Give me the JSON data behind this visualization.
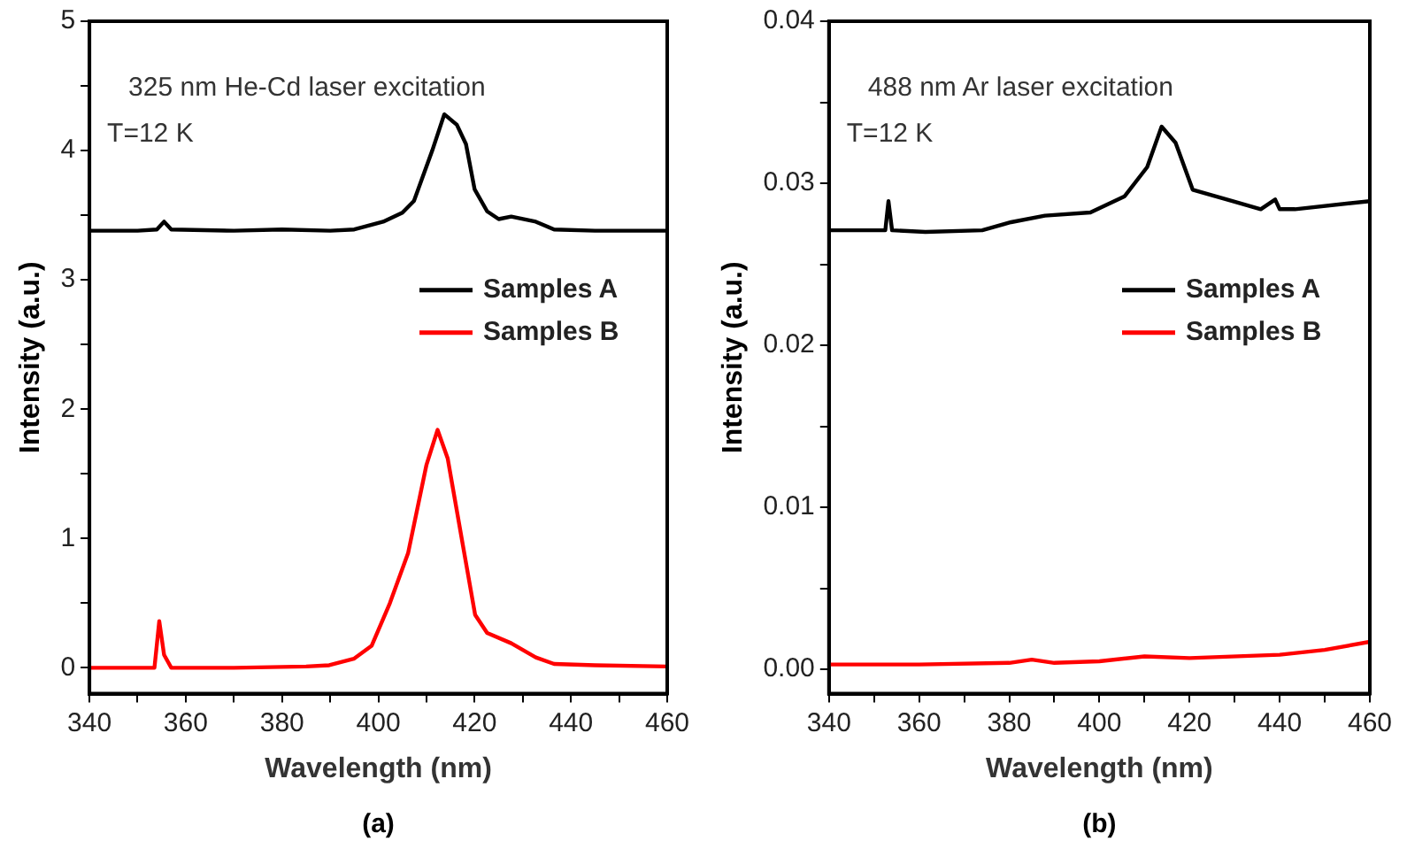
{
  "chart_data": [
    {
      "type": "line",
      "xlabel": "Wavelength (nm)",
      "ylabel": "Intensity (a.u.)",
      "annotations": [
        "325 nm He-Cd laser excitation",
        "T=12 K",
        "(a)"
      ],
      "legend": "right",
      "grid": false,
      "line_style": "solid",
      "marker": "none",
      "xlim": [
        340,
        460
      ],
      "xticks": [
        340,
        {
          "value": 350,
          "label": null
        },
        360,
        {
          "value": 370,
          "label": null
        },
        380,
        {
          "value": 390,
          "label": null
        },
        400,
        {
          "value": 410,
          "label": null
        },
        420,
        {
          "value": 430,
          "label": null
        },
        440,
        {
          "value": 450,
          "label": null
        },
        460
      ],
      "ylim": [
        -0.2,
        5
      ],
      "yticks": [
        0,
        {
          "value": 0.5,
          "label": null
        },
        1,
        {
          "value": 1.5,
          "label": null
        },
        2,
        {
          "value": 2.5,
          "label": null
        },
        3,
        {
          "value": 3.5,
          "label": null
        },
        4,
        {
          "value": 4.5,
          "label": null
        },
        5
      ],
      "series": [
        {
          "name": "Samples A",
          "color": "#000000",
          "x": [
            340,
            350,
            354,
            355.5,
            357,
            370,
            380,
            390,
            395,
            401,
            405,
            407.4,
            411.2,
            413.7,
            416.3,
            418.2,
            420,
            422.6,
            425,
            427.6,
            432.7,
            436.5,
            445,
            460
          ],
          "values": [
            3.38,
            3.38,
            3.39,
            3.45,
            3.39,
            3.38,
            3.39,
            3.38,
            3.39,
            3.45,
            3.52,
            3.61,
            4.0,
            4.28,
            4.2,
            4.05,
            3.7,
            3.53,
            3.47,
            3.49,
            3.45,
            3.39,
            3.38,
            3.38
          ]
        },
        {
          "name": "Samples B",
          "color": "#ff0000",
          "x": [
            340,
            353.5,
            354.5,
            355.5,
            357,
            370,
            385,
            389.8,
            394.9,
            398.6,
            402.4,
            406.2,
            410,
            412.3,
            414.4,
            417.6,
            420.1,
            422.6,
            427.6,
            432.7,
            436.5,
            445,
            460
          ],
          "values": [
            0,
            0,
            0.36,
            0.1,
            0,
            0,
            0.01,
            0.02,
            0.07,
            0.17,
            0.5,
            0.89,
            1.57,
            1.84,
            1.62,
            0.94,
            0.41,
            0.27,
            0.19,
            0.08,
            0.03,
            0.02,
            0.01
          ]
        }
      ]
    },
    {
      "type": "line",
      "xlabel": "Wavelength (nm)",
      "ylabel": "Intensity (a.u.)",
      "annotations": [
        "488 nm Ar laser excitation",
        "T=12 K",
        "(b)"
      ],
      "legend": "right",
      "grid": false,
      "line_style": "solid",
      "marker": "none",
      "xlim": [
        340,
        460
      ],
      "xticks": [
        340,
        {
          "value": 350,
          "label": null
        },
        360,
        {
          "value": 370,
          "label": null
        },
        380,
        {
          "value": 390,
          "label": null
        },
        400,
        {
          "value": 410,
          "label": null
        },
        420,
        {
          "value": 430,
          "label": null
        },
        440,
        {
          "value": 450,
          "label": null
        },
        460
      ],
      "ylim": [
        -0.0015,
        0.04
      ],
      "yticks": [
        {
          "value": 0,
          "label": "0.00"
        },
        {
          "value": 0.005,
          "label": null
        },
        {
          "value": 0.01,
          "label": "0.01"
        },
        {
          "value": 0.015,
          "label": null
        },
        {
          "value": 0.02,
          "label": "0.02"
        },
        {
          "value": 0.025,
          "label": null
        },
        {
          "value": 0.03,
          "label": "0.03"
        },
        {
          "value": 0.035,
          "label": null
        },
        {
          "value": 0.04,
          "label": "0.04"
        }
      ],
      "series": [
        {
          "name": "Samples A",
          "color": "#000000",
          "x": [
            340,
            352.5,
            353.2,
            354,
            361.4,
            374,
            380.4,
            387.9,
            398,
            405.6,
            410.6,
            413.8,
            416.9,
            420.7,
            425.7,
            429.5,
            435.8,
            439,
            440,
            443.4,
            460
          ],
          "values": [
            0.0271,
            0.0271,
            0.0289,
            0.0271,
            0.027,
            0.0271,
            0.0276,
            0.028,
            0.0282,
            0.0292,
            0.031,
            0.0335,
            0.0325,
            0.0296,
            0.0292,
            0.0289,
            0.0284,
            0.029,
            0.0284,
            0.0284,
            0.0289
          ]
        },
        {
          "name": "Samples B",
          "color": "#ff0000",
          "x": [
            340,
            360,
            380,
            385,
            390,
            400,
            410,
            420,
            440,
            450,
            460
          ],
          "values": [
            0.0003,
            0.0003,
            0.0004,
            0.0006,
            0.0004,
            0.0005,
            0.0008,
            0.0007,
            0.0009,
            0.0012,
            0.0017
          ]
        }
      ]
    }
  ]
}
